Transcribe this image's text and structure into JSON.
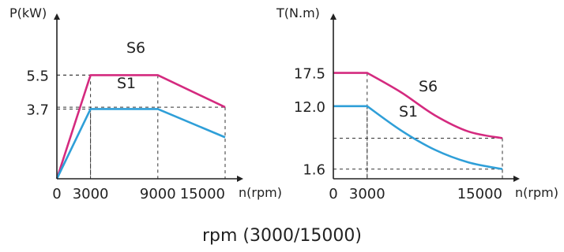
{
  "caption": "rpm  (3000/15000)",
  "colors": {
    "S6": "#d42a7f",
    "S1": "#2f9fd8",
    "axis": "#222222"
  },
  "chart_data": [
    {
      "type": "line",
      "ylabel": "P(kW)",
      "xlabel": "n(rpm)",
      "xlim": [
        0,
        15000
      ],
      "ylim": [
        0,
        7.9
      ],
      "x_ticks": [
        {
          "value": 0,
          "label": "0"
        },
        {
          "value": 3000,
          "label": "3000"
        },
        {
          "value": 9000,
          "label": "9000"
        },
        {
          "value": 15000,
          "label": "15000"
        }
      ],
      "y_ticks": [
        {
          "value": 5.5,
          "label": "5.5"
        },
        {
          "value": 3.7,
          "label": "3.7"
        }
      ],
      "series": [
        {
          "name": "S6",
          "color": "#d42a7f",
          "points": [
            [
              0,
              0
            ],
            [
              3000,
              5.5
            ],
            [
              9000,
              5.5
            ],
            [
              15000,
              3.8
            ]
          ]
        },
        {
          "name": "S1",
          "color": "#2f9fd8",
          "points": [
            [
              0,
              0
            ],
            [
              3000,
              3.7
            ],
            [
              9000,
              3.7
            ],
            [
              15000,
              2.2
            ]
          ]
        }
      ],
      "guides": [
        {
          "x": 3000,
          "y": 5.5
        },
        {
          "x": 3000,
          "y": 3.7
        },
        {
          "x": 9000,
          "y": 5.5
        },
        {
          "x": 15000,
          "y": 3.8
        }
      ]
    },
    {
      "type": "line",
      "ylabel": "T(N.m)",
      "xlabel": "n(rpm)",
      "xlim": [
        0,
        15000
      ],
      "ylim": [
        0,
        24.6
      ],
      "x_ticks": [
        {
          "value": 0,
          "label": "0"
        },
        {
          "value": 3000,
          "label": "3000"
        },
        {
          "value": 15000,
          "label": "15000"
        }
      ],
      "y_ticks": [
        {
          "value": 17.5,
          "label": "17.5"
        },
        {
          "value": 12.0,
          "label": "12.0"
        },
        {
          "value": 1.6,
          "label": "1.6"
        }
      ],
      "series": [
        {
          "name": "S6",
          "color": "#d42a7f",
          "points": [
            [
              0,
              17.5
            ],
            [
              3000,
              17.5
            ],
            [
              6000,
              14.3
            ],
            [
              9000,
              10.5
            ],
            [
              12000,
              7.8
            ],
            [
              15000,
              6.7
            ]
          ]
        },
        {
          "name": "S1",
          "color": "#2f9fd8",
          "points": [
            [
              0,
              12.0
            ],
            [
              3000,
              12.0
            ],
            [
              6000,
              8.0
            ],
            [
              9000,
              4.8
            ],
            [
              12000,
              2.7
            ],
            [
              15000,
              1.6
            ]
          ]
        }
      ],
      "guides": [
        {
          "x": 3000,
          "y": 17.5
        },
        {
          "x": 15000,
          "y": 6.7
        }
      ]
    }
  ]
}
